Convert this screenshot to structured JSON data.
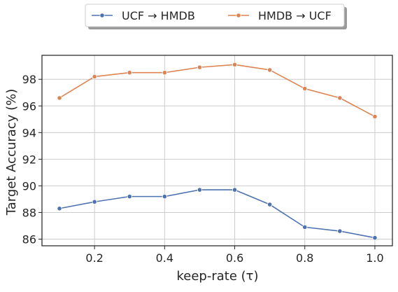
{
  "chart_data": {
    "type": "line",
    "xlabel": "keep-rate (τ)",
    "ylabel": "Target Accuracy (%)",
    "xlim": [
      0.05,
      1.05
    ],
    "ylim": [
      85.5,
      99.8
    ],
    "xticks": [
      0.2,
      0.4,
      0.6,
      0.8,
      1.0
    ],
    "xtick_labels": [
      "0.2",
      "0.4",
      "0.6",
      "0.8",
      "1.0"
    ],
    "yticks": [
      86,
      88,
      90,
      92,
      94,
      96,
      98
    ],
    "ytick_labels": [
      "86",
      "88",
      "90",
      "92",
      "94",
      "96",
      "98"
    ],
    "grid": true,
    "legend_position": "top-center",
    "x": [
      0.1,
      0.2,
      0.3,
      0.4,
      0.5,
      0.6,
      0.7,
      0.8,
      0.9,
      1.0
    ],
    "series": [
      {
        "name": "UCF → HMDB",
        "color": "#4c72b0",
        "values": [
          88.3,
          88.8,
          89.2,
          89.2,
          89.7,
          89.7,
          88.6,
          86.9,
          86.6,
          86.1
        ]
      },
      {
        "name": "HMDB → UCF",
        "color": "#dd8452",
        "values": [
          96.6,
          98.2,
          98.5,
          98.5,
          98.9,
          99.1,
          98.7,
          97.3,
          96.6,
          95.2
        ]
      }
    ]
  }
}
